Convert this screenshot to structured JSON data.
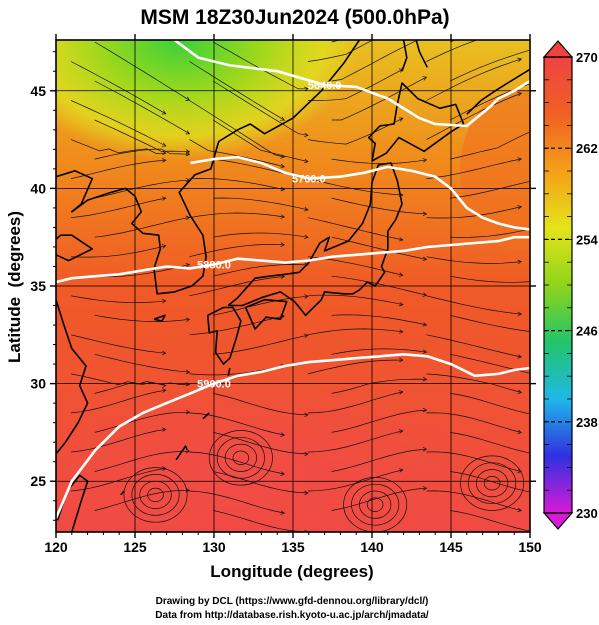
{
  "figure": {
    "title": "MSM 18Z30Jun2024 (500.0hPa)",
    "xlabel": "Longitude (degrees)",
    "ylabel": "Latitude  (degrees)",
    "credits": [
      "Drawing by DCL (https://www.gfd-dennou.org/library/dcl/)",
      "Data from http://database.rish.kyoto-u.ac.jp/arch/jmadata/"
    ]
  },
  "map": {
    "x_range": [
      120,
      150
    ],
    "y_range": [
      22.4,
      47.6
    ],
    "x_ticks": [
      "120",
      "125",
      "130",
      "135",
      "140",
      "145",
      "150"
    ],
    "y_ticks": [
      "25",
      "30",
      "35",
      "40",
      "45"
    ],
    "grid_lon_step": 5,
    "grid_lat_step": 5,
    "contours": [
      {
        "value": "5640.0",
        "points": [
          [
            127.5,
            47.6
          ],
          [
            129,
            46.7
          ],
          [
            131,
            46.3
          ],
          [
            134,
            46.0
          ],
          [
            137,
            45.3
          ],
          [
            139,
            45.2
          ],
          [
            141,
            44.6
          ],
          [
            143,
            43.6
          ],
          [
            144,
            43.3
          ],
          [
            146,
            43.2
          ],
          [
            147.5,
            44.2
          ],
          [
            148,
            44.6
          ],
          [
            149,
            45
          ],
          [
            150,
            45.5
          ]
        ]
      },
      {
        "value": "5760.0",
        "points": [
          [
            128.5,
            41.3
          ],
          [
            130,
            41.5
          ],
          [
            131.5,
            41.6
          ],
          [
            133,
            41.3
          ],
          [
            134.5,
            40.8
          ],
          [
            136,
            40.5
          ],
          [
            138,
            40.6
          ],
          [
            139.5,
            40.8
          ],
          [
            141,
            41.1
          ],
          [
            142.5,
            40.9
          ],
          [
            144,
            40.6
          ],
          [
            145,
            40.0
          ],
          [
            146,
            39.0
          ],
          [
            147,
            38.5
          ],
          [
            148,
            38.2
          ],
          [
            149,
            38.0
          ],
          [
            150,
            37.9
          ]
        ]
      },
      {
        "value": "5880.0",
        "points": [
          [
            120,
            35.2
          ],
          [
            121,
            35.4
          ],
          [
            122.5,
            35.5
          ],
          [
            124,
            35.6
          ],
          [
            125.5,
            35.8
          ],
          [
            127,
            36.0
          ],
          [
            128.5,
            35.9
          ],
          [
            130,
            36.1
          ],
          [
            131.5,
            36.4
          ],
          [
            133,
            36.3
          ],
          [
            134.5,
            36.2
          ],
          [
            136,
            36.3
          ],
          [
            137.5,
            36.5
          ],
          [
            139,
            36.6
          ],
          [
            140.5,
            36.7
          ],
          [
            142,
            36.8
          ],
          [
            143.5,
            37.0
          ],
          [
            145,
            37.1
          ],
          [
            146.5,
            37.2
          ],
          [
            148,
            37.3
          ],
          [
            149,
            37.5
          ],
          [
            150,
            37.5
          ]
        ]
      },
      {
        "value": "5900.0",
        "points": [
          [
            120,
            23.1
          ],
          [
            121,
            25.0
          ],
          [
            122.5,
            26.6
          ],
          [
            124,
            27.8
          ],
          [
            125.5,
            28.5
          ],
          [
            127,
            29.0
          ],
          [
            128.5,
            29.5
          ],
          [
            130,
            30.0
          ],
          [
            131.5,
            30.4
          ],
          [
            133,
            30.6
          ],
          [
            134.5,
            30.9
          ],
          [
            136,
            31.1
          ],
          [
            137.5,
            31.2
          ],
          [
            139,
            31.3
          ],
          [
            140.5,
            31.4
          ],
          [
            142,
            31.5
          ],
          [
            143.5,
            31.4
          ],
          [
            145,
            31.0
          ],
          [
            146.5,
            30.4
          ],
          [
            148,
            30.5
          ],
          [
            149,
            30.7
          ],
          [
            150,
            30.8
          ]
        ]
      }
    ]
  },
  "colorbar": {
    "range": [
      230,
      270
    ],
    "ticks": [
      "230",
      "238",
      "246",
      "254",
      "262",
      "270"
    ],
    "stops": [
      "#d81bd6",
      "#3030e0",
      "#1fb8e8",
      "#22c46a",
      "#8fd51a",
      "#e4e41a",
      "#f4a018",
      "#f06024",
      "#f04242"
    ]
  }
}
